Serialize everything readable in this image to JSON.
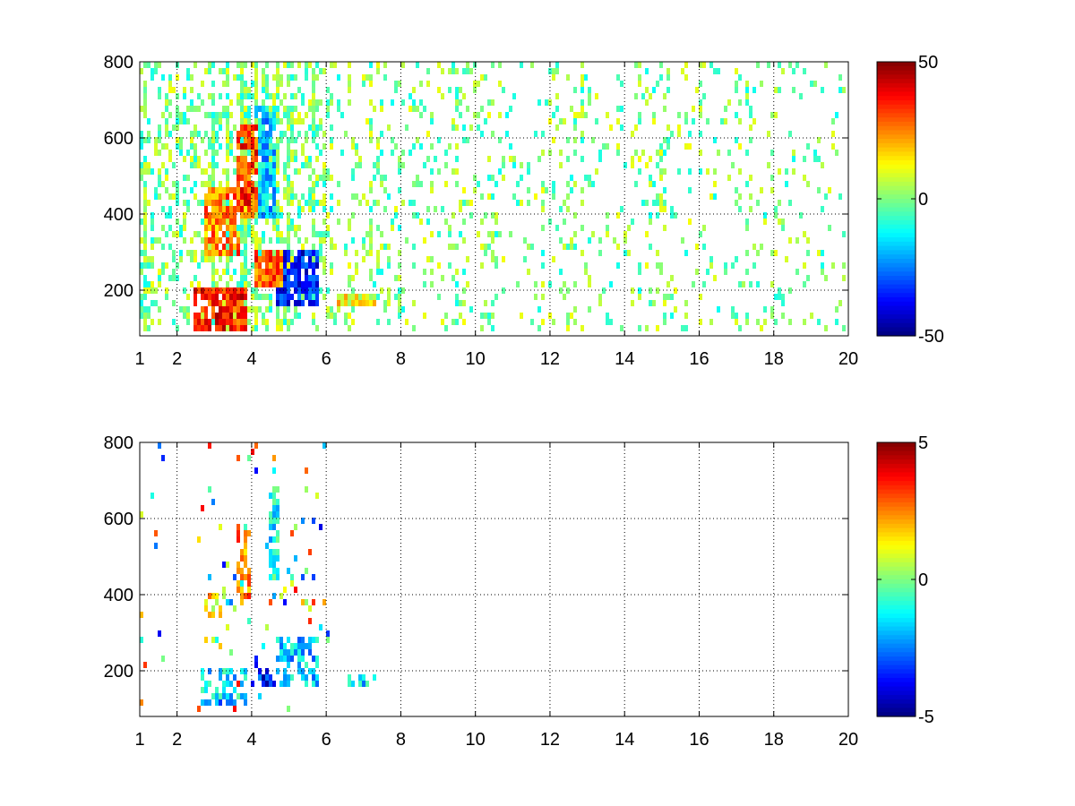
{
  "chart_data": [
    {
      "type": "heatmap",
      "title": "",
      "xlabel": "",
      "ylabel": "",
      "xlim": [
        1,
        20
      ],
      "ylim": [
        80,
        800
      ],
      "xticks": [
        1,
        2,
        4,
        6,
        8,
        10,
        12,
        14,
        16,
        18,
        20
      ],
      "yticks": [
        200,
        400,
        600,
        800
      ],
      "grid": true,
      "colormap": "jet",
      "colorbar": {
        "range": [
          -50,
          50
        ],
        "ticks": [
          50,
          0,
          -50
        ]
      },
      "dense_regions": [
        {
          "x": [
            2.7,
            3.6
          ],
          "y": [
            300,
            480
          ],
          "value": 25
        },
        {
          "x": [
            3.5,
            4.1
          ],
          "y": [
            400,
            650
          ],
          "value": 32
        },
        {
          "x": [
            2.4,
            3.8
          ],
          "y": [
            100,
            220
          ],
          "value": 35
        },
        {
          "x": [
            4.0,
            4.8
          ],
          "y": [
            220,
            320
          ],
          "value": 28
        },
        {
          "x": [
            4.6,
            5.8
          ],
          "y": [
            170,
            320
          ],
          "value": -35
        },
        {
          "x": [
            4.0,
            4.6
          ],
          "y": [
            400,
            700
          ],
          "value": -18
        },
        {
          "x": [
            6.2,
            7.3
          ],
          "y": [
            170,
            200
          ],
          "value": 12
        }
      ],
      "sparse_value_range": [
        -12,
        12
      ]
    },
    {
      "type": "heatmap",
      "title": "",
      "xlabel": "",
      "ylabel": "",
      "xlim": [
        1,
        20
      ],
      "ylim": [
        80,
        800
      ],
      "xticks": [
        1,
        2,
        4,
        6,
        8,
        10,
        12,
        14,
        16,
        18,
        20
      ],
      "yticks": [
        200,
        400,
        600,
        800
      ],
      "grid": true,
      "colormap": "jet",
      "colorbar": {
        "range": [
          -5,
          5
        ],
        "ticks": [
          5,
          0,
          -5
        ]
      },
      "dense_regions": [
        {
          "x": [
            2.7,
            3.3
          ],
          "y": [
            350,
            420
          ],
          "value": 1.5
        },
        {
          "x": [
            3.5,
            3.9
          ],
          "y": [
            380,
            600
          ],
          "value": 2.5
        },
        {
          "x": [
            2.6,
            3.8
          ],
          "y": [
            110,
            220
          ],
          "value": -1.5
        },
        {
          "x": [
            3.9,
            4.6
          ],
          "y": [
            170,
            210
          ],
          "value": -3.5
        },
        {
          "x": [
            4.6,
            5.8
          ],
          "y": [
            170,
            300
          ],
          "value": -1.8
        },
        {
          "x": [
            4.4,
            4.7
          ],
          "y": [
            400,
            700
          ],
          "value": -1.2
        },
        {
          "x": [
            6.5,
            7.3
          ],
          "y": [
            170,
            200
          ],
          "value": -1.5
        }
      ],
      "sparse_value_range": [
        -4,
        4
      ]
    }
  ]
}
